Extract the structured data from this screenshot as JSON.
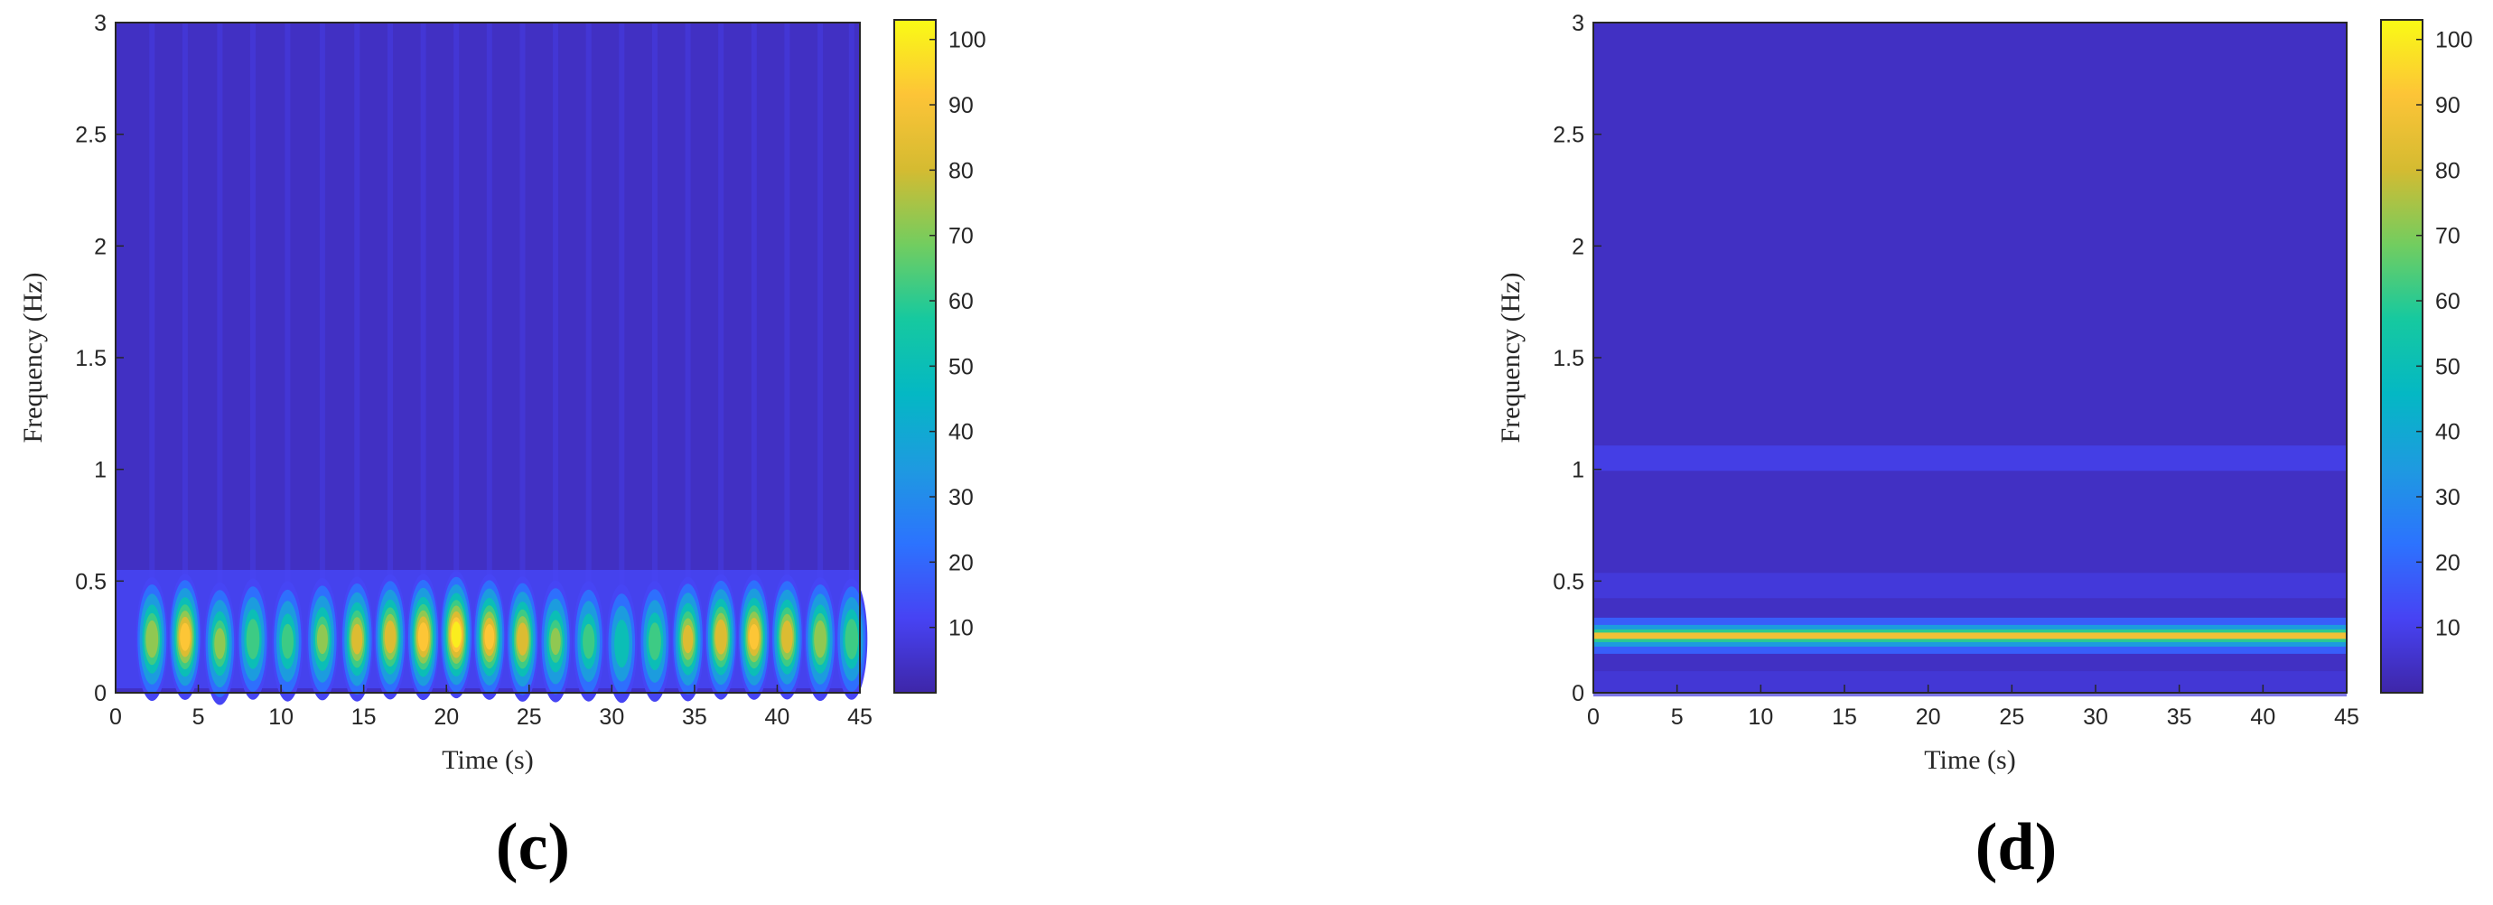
{
  "colors": {
    "colormap": [
      "#3e26a8",
      "#4743f4",
      "#2c73fe",
      "#1e9ae0",
      "#04b8c4",
      "#16c99f",
      "#73cd5f",
      "#d5bb31",
      "#fdc437",
      "#f9fb15"
    ]
  },
  "chart_data": [
    {
      "type": "heatmap",
      "panel": "(c)",
      "title": "",
      "xlabel": "Time (s)",
      "ylabel": "Frequency (Hz)",
      "xlim": [
        0,
        45
      ],
      "ylim": [
        0,
        3
      ],
      "xticks": [
        0,
        5,
        10,
        15,
        20,
        25,
        30,
        35,
        40,
        45
      ],
      "yticks": [
        0,
        0.5,
        1,
        1.5,
        2,
        2.5,
        3
      ],
      "colorbar": {
        "ticks": [
          10,
          20,
          30,
          40,
          50,
          60,
          70,
          80,
          90,
          100
        ],
        "range": [
          0,
          103
        ]
      },
      "background_level": 4,
      "blobs": [
        {
          "t": 2.2,
          "f": 0.24,
          "peak": 80
        },
        {
          "t": 4.2,
          "f": 0.25,
          "peak": 95
        },
        {
          "t": 6.3,
          "f": 0.22,
          "peak": 75
        },
        {
          "t": 8.3,
          "f": 0.24,
          "peak": 70
        },
        {
          "t": 10.4,
          "f": 0.23,
          "peak": 66
        },
        {
          "t": 12.5,
          "f": 0.24,
          "peak": 74
        },
        {
          "t": 14.6,
          "f": 0.24,
          "peak": 86
        },
        {
          "t": 16.6,
          "f": 0.25,
          "peak": 88
        },
        {
          "t": 18.6,
          "f": 0.25,
          "peak": 96
        },
        {
          "t": 20.6,
          "f": 0.26,
          "peak": 102
        },
        {
          "t": 22.6,
          "f": 0.25,
          "peak": 93
        },
        {
          "t": 24.6,
          "f": 0.24,
          "peak": 88
        },
        {
          "t": 26.6,
          "f": 0.23,
          "peak": 72
        },
        {
          "t": 28.6,
          "f": 0.23,
          "peak": 66
        },
        {
          "t": 30.6,
          "f": 0.22,
          "peak": 60
        },
        {
          "t": 32.6,
          "f": 0.23,
          "peak": 68
        },
        {
          "t": 34.6,
          "f": 0.24,
          "peak": 84
        },
        {
          "t": 36.6,
          "f": 0.25,
          "peak": 90
        },
        {
          "t": 38.6,
          "f": 0.25,
          "peak": 93
        },
        {
          "t": 40.6,
          "f": 0.25,
          "peak": 88
        },
        {
          "t": 42.6,
          "f": 0.24,
          "peak": 80
        },
        {
          "t": 44.5,
          "f": 0.24,
          "peak": 70
        }
      ]
    },
    {
      "type": "heatmap",
      "panel": "(d)",
      "title": "",
      "xlabel": "Time (s)",
      "ylabel": "Frequency (Hz)",
      "xlim": [
        0,
        45
      ],
      "ylim": [
        0,
        3
      ],
      "xticks": [
        0,
        5,
        10,
        15,
        20,
        25,
        30,
        35,
        40,
        45
      ],
      "yticks": [
        0,
        0.5,
        1,
        1.5,
        2,
        2.5,
        3
      ],
      "colorbar": {
        "ticks": [
          10,
          20,
          30,
          40,
          50,
          60,
          70,
          80,
          90,
          100
        ],
        "range": [
          0,
          103
        ]
      },
      "background_level": 4,
      "ridge": {
        "f": 0.255,
        "peak": 88
      },
      "weak_bands": [
        {
          "f": 1.05,
          "level": 12
        },
        {
          "f": 0.48,
          "level": 9
        },
        {
          "f": 0.04,
          "level": 8
        }
      ]
    }
  ]
}
